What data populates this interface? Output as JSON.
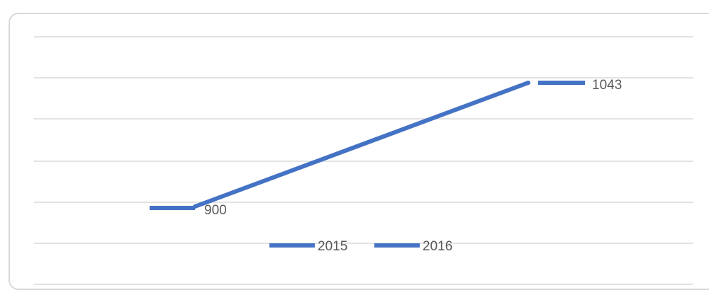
{
  "chart_data": {
    "type": "line",
    "title": "",
    "xlabel": "",
    "ylabel": "",
    "categories": [
      "2015",
      "2016"
    ],
    "series": [
      {
        "name": "",
        "values": [
          900,
          1043
        ],
        "color": "#4472c4"
      }
    ],
    "data_labels": [
      "900",
      "1043"
    ],
    "ylim": [
      880,
      1060
    ],
    "grid": true,
    "legend": {
      "placement": "bottom",
      "entries": [
        {
          "label": "2015",
          "color": "#4472c4"
        },
        {
          "label": "2016",
          "color": "#4472c4"
        }
      ]
    }
  }
}
